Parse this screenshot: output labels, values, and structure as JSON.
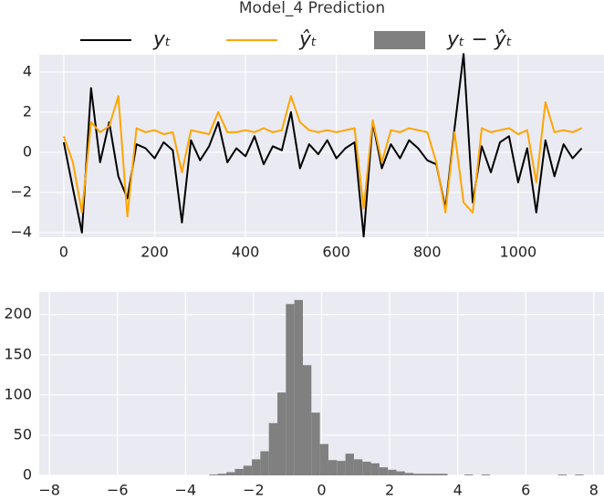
{
  "chart_data": [
    {
      "type": "line",
      "title": "Model_4 Prediction",
      "x": [
        0,
        20,
        40,
        60,
        80,
        100,
        120,
        140,
        160,
        180,
        200,
        220,
        240,
        260,
        280,
        300,
        320,
        340,
        360,
        380,
        400,
        420,
        440,
        460,
        480,
        500,
        520,
        540,
        560,
        580,
        600,
        620,
        640,
        660,
        680,
        700,
        720,
        740,
        760,
        780,
        800,
        820,
        840,
        860,
        880,
        900,
        920,
        940,
        960,
        980,
        1000,
        1020,
        1040,
        1060,
        1080,
        1100,
        1120,
        1140
      ],
      "series": [
        {
          "name": "yₜ",
          "color": "#000000",
          "values": [
            0.5,
            -1.8,
            -4.0,
            3.2,
            -0.5,
            1.5,
            -1.2,
            -2.3,
            0.4,
            0.2,
            -0.3,
            0.5,
            0.1,
            -3.5,
            0.6,
            -0.4,
            0.3,
            1.5,
            -0.5,
            0.2,
            -0.2,
            0.8,
            -0.6,
            0.3,
            0.1,
            2.0,
            -0.8,
            0.4,
            -0.1,
            0.6,
            -0.3,
            0.2,
            0.5,
            -4.2,
            1.5,
            -0.8,
            0.4,
            -0.3,
            0.6,
            0.2,
            -0.4,
            -0.6,
            -2.8,
            1.2,
            4.9,
            -2.5,
            0.3,
            -1.0,
            0.5,
            0.8,
            -1.5,
            0.2,
            -3.0,
            0.6,
            -1.2,
            0.4,
            -0.3,
            0.2
          ]
        },
        {
          "name": "ŷₜ",
          "color": "#ffa500",
          "values": [
            0.8,
            -0.5,
            -3.0,
            1.5,
            1.0,
            1.3,
            2.8,
            -3.2,
            1.2,
            1.0,
            1.1,
            0.9,
            1.0,
            -1.0,
            1.1,
            1.0,
            0.9,
            2.0,
            1.0,
            1.0,
            1.1,
            1.0,
            1.2,
            1.0,
            1.1,
            2.8,
            1.5,
            1.1,
            1.0,
            1.1,
            1.0,
            1.1,
            1.2,
            -2.8,
            1.6,
            -0.5,
            1.1,
            1.0,
            1.2,
            1.1,
            1.0,
            -0.5,
            -3.0,
            1.0,
            -2.5,
            -3.0,
            1.2,
            1.0,
            1.1,
            1.2,
            0.9,
            1.1,
            -1.5,
            2.5,
            1.0,
            1.1,
            1.0,
            1.2
          ]
        }
      ],
      "xlim": [
        -54,
        1189
      ],
      "xticks": [
        0,
        200,
        400,
        600,
        800,
        1000
      ],
      "ylim": [
        -4.23,
        4.86
      ],
      "yticks": [
        {
          "value": -4,
          "label": "−4"
        },
        {
          "value": -2,
          "label": "−2"
        },
        0,
        2,
        4
      ],
      "grid": true
    },
    {
      "type": "histogram",
      "name": "yₜ − ŷₜ",
      "color": "#808080",
      "bins": [
        -3.3,
        -3.05,
        -2.8,
        -2.55,
        -2.3,
        -2.05,
        -1.8,
        -1.55,
        -1.3,
        -1.05,
        -0.8,
        -0.55,
        -0.3,
        -0.05,
        0.2,
        0.45,
        0.7,
        0.95,
        1.2,
        1.45,
        1.7,
        1.95,
        2.2,
        2.45,
        2.7,
        2.95,
        3.2,
        3.45,
        3.7,
        3.95,
        4.2,
        4.45,
        4.7,
        4.95,
        5.2,
        5.45,
        5.7,
        5.95,
        6.2,
        6.45,
        6.7,
        6.95,
        7.2,
        7.45,
        7.7
      ],
      "values": [
        1,
        2,
        4,
        8,
        12,
        20,
        30,
        65,
        103,
        213,
        218,
        137,
        78,
        39,
        19,
        18,
        27,
        20,
        17,
        15,
        10,
        7,
        5,
        3,
        2,
        2,
        2,
        2,
        0,
        0,
        1,
        0,
        1,
        0,
        0,
        0,
        0,
        0,
        0,
        0,
        0,
        1,
        0,
        1
      ],
      "xlim": [
        -8.3,
        8.3
      ],
      "xticks": [
        {
          "value": -8,
          "label": "−8"
        },
        {
          "value": -6,
          "label": "−6"
        },
        {
          "value": -4,
          "label": "−4"
        },
        {
          "value": -2,
          "label": "−2"
        },
        0,
        2,
        4,
        6,
        8
      ],
      "ylim": [
        0,
        228
      ],
      "yticks": [
        0,
        50,
        100,
        150,
        200
      ],
      "grid": true
    }
  ]
}
